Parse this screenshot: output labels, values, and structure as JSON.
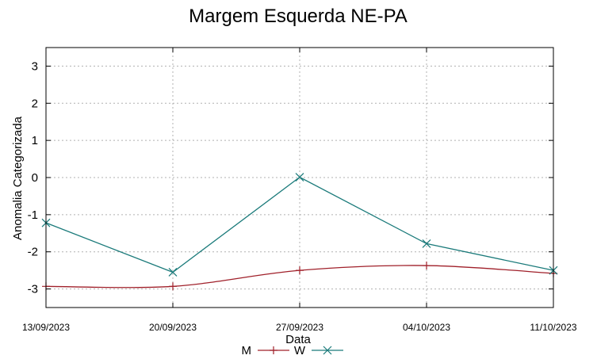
{
  "chart_data": {
    "type": "line",
    "title": "Margem Esquerda NE-PA",
    "xlabel": "Data",
    "ylabel": "Anomalia Categorizada",
    "categories": [
      "13/09/2023",
      "20/09/2023",
      "27/09/2023",
      "04/10/2023",
      "11/10/2023"
    ],
    "ylim": [
      -3.5,
      3.5
    ],
    "yticks": [
      3,
      2,
      1,
      0,
      -1,
      -2,
      -3
    ],
    "grid": true,
    "legend_position": "bottom-center",
    "series": [
      {
        "name": "M",
        "color": "#a0202a",
        "marker": "plus",
        "smooth": true,
        "values": [
          -2.93,
          -2.93,
          -2.5,
          -2.37,
          -2.58
        ]
      },
      {
        "name": "W",
        "color": "#1a7a7a",
        "marker": "cross",
        "smooth": false,
        "values": [
          -1.22,
          -2.55,
          0.01,
          -1.78,
          -2.5
        ]
      }
    ]
  }
}
